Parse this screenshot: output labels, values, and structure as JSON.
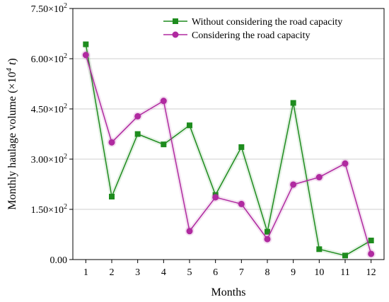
{
  "chart_data": {
    "type": "line",
    "xlabel": "Months",
    "ylabel": {
      "prefix": "Monthly haulage volume (×10",
      "exponent": "4",
      "unit": " t",
      "suffix": ")"
    },
    "x": [
      1,
      2,
      3,
      4,
      5,
      6,
      7,
      8,
      9,
      10,
      11,
      12
    ],
    "xlim": [
      0.5,
      12.5
    ],
    "ylim": [
      0,
      750
    ],
    "yticks": [
      {
        "value": 0,
        "label": "0.00"
      },
      {
        "value": 150,
        "mantissa": "1.50×10",
        "exp": "2"
      },
      {
        "value": 300,
        "mantissa": "3.00×10",
        "exp": "2"
      },
      {
        "value": 450,
        "mantissa": "4.50×10",
        "exp": "2"
      },
      {
        "value": 600,
        "mantissa": "6.00×10",
        "exp": "2"
      },
      {
        "value": 750,
        "mantissa": "7.50×10",
        "exp": "2"
      }
    ],
    "grid": true,
    "legend_position": "top-right",
    "series": [
      {
        "name": "Without considering the road  capacity",
        "marker": "square",
        "color": "#1e8c1e",
        "values": [
          643,
          188,
          375,
          344,
          401,
          193,
          336,
          83,
          468,
          31,
          12,
          57
        ]
      },
      {
        "name": "Considering the  road  capacity",
        "marker": "circle",
        "color": "#b02aa0",
        "values": [
          611,
          350,
          428,
          474,
          85,
          186,
          166,
          61,
          224,
          246,
          287,
          17
        ]
      }
    ]
  }
}
